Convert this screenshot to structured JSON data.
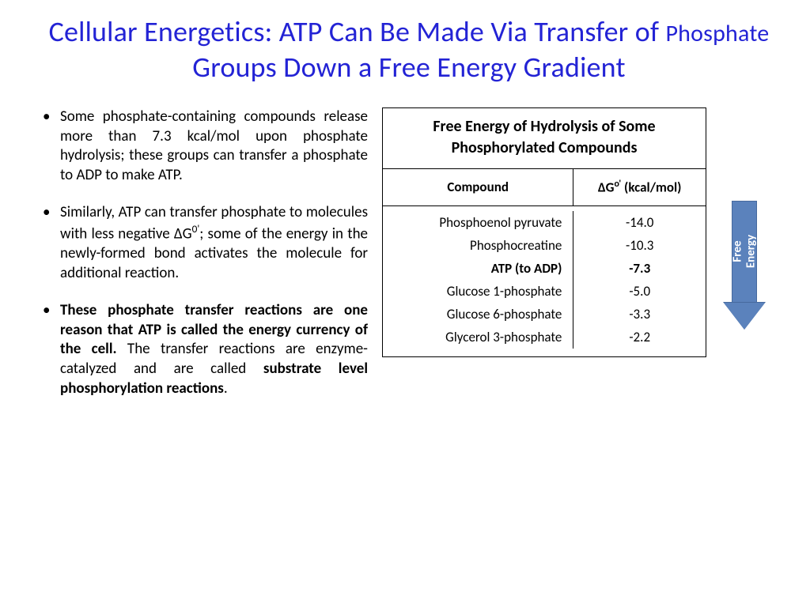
{
  "title": {
    "part1": "Cellular Energetics:  ATP Can Be Made Via Transfer of ",
    "part2_small": "Phosphate",
    "part3": " Groups Down a Free Energy Gradient"
  },
  "bullets": [
    {
      "bold": false,
      "html": "Some phosphate-containing compounds release more than 7.3 kcal/mol upon phosphate hydrolysis; these groups can transfer a phosphate to ADP to make ATP."
    },
    {
      "bold": false,
      "html": "Similarly, ATP can transfer phosphate to molecules with less negative ΔG<span class='sup'>0'</span>; some of the energy in the newly-formed bond activates the molecule for additional reaction."
    },
    {
      "bold": false,
      "html": "<span class='bold'>These phosphate transfer reactions are one reason that ATP is called the energy currency of the cell.</span> The transfer reactions are enzyme-catalyzed and are called <span class='bold'>substrate level phosphorylation reactions</span>."
    }
  ],
  "table": {
    "title": "Free Energy of Hydrolysis of Some Phosphorylated Compounds",
    "head_col1": "Compound",
    "head_col2_html": "ΔG<span class='sup'>o'</span> (kcal/mol)",
    "rows": [
      {
        "compound": "Phosphoenol pyruvate",
        "dg": "-14.0",
        "bold": false
      },
      {
        "compound": "Phosphocreatine",
        "dg": "-10.3",
        "bold": false
      },
      {
        "compound": "ATP (to ADP)",
        "dg": "-7.3",
        "bold": true
      },
      {
        "compound": "Glucose 1-phosphate",
        "dg": "-5.0",
        "bold": false
      },
      {
        "compound": "Glucose 6-phosphate",
        "dg": "-3.3",
        "bold": false
      },
      {
        "compound": "Glycerol 3-phosphate",
        "dg": "-2.2",
        "bold": false
      }
    ]
  },
  "arrow": {
    "label_line1": "Free",
    "label_line2": "Energy",
    "fill_color": "#5b82bc",
    "border_color": "#476a9e",
    "text_color": "#ffffff"
  },
  "colors": {
    "title": "#2323d5",
    "text": "#000000",
    "background": "#ffffff",
    "table_border": "#000000"
  }
}
